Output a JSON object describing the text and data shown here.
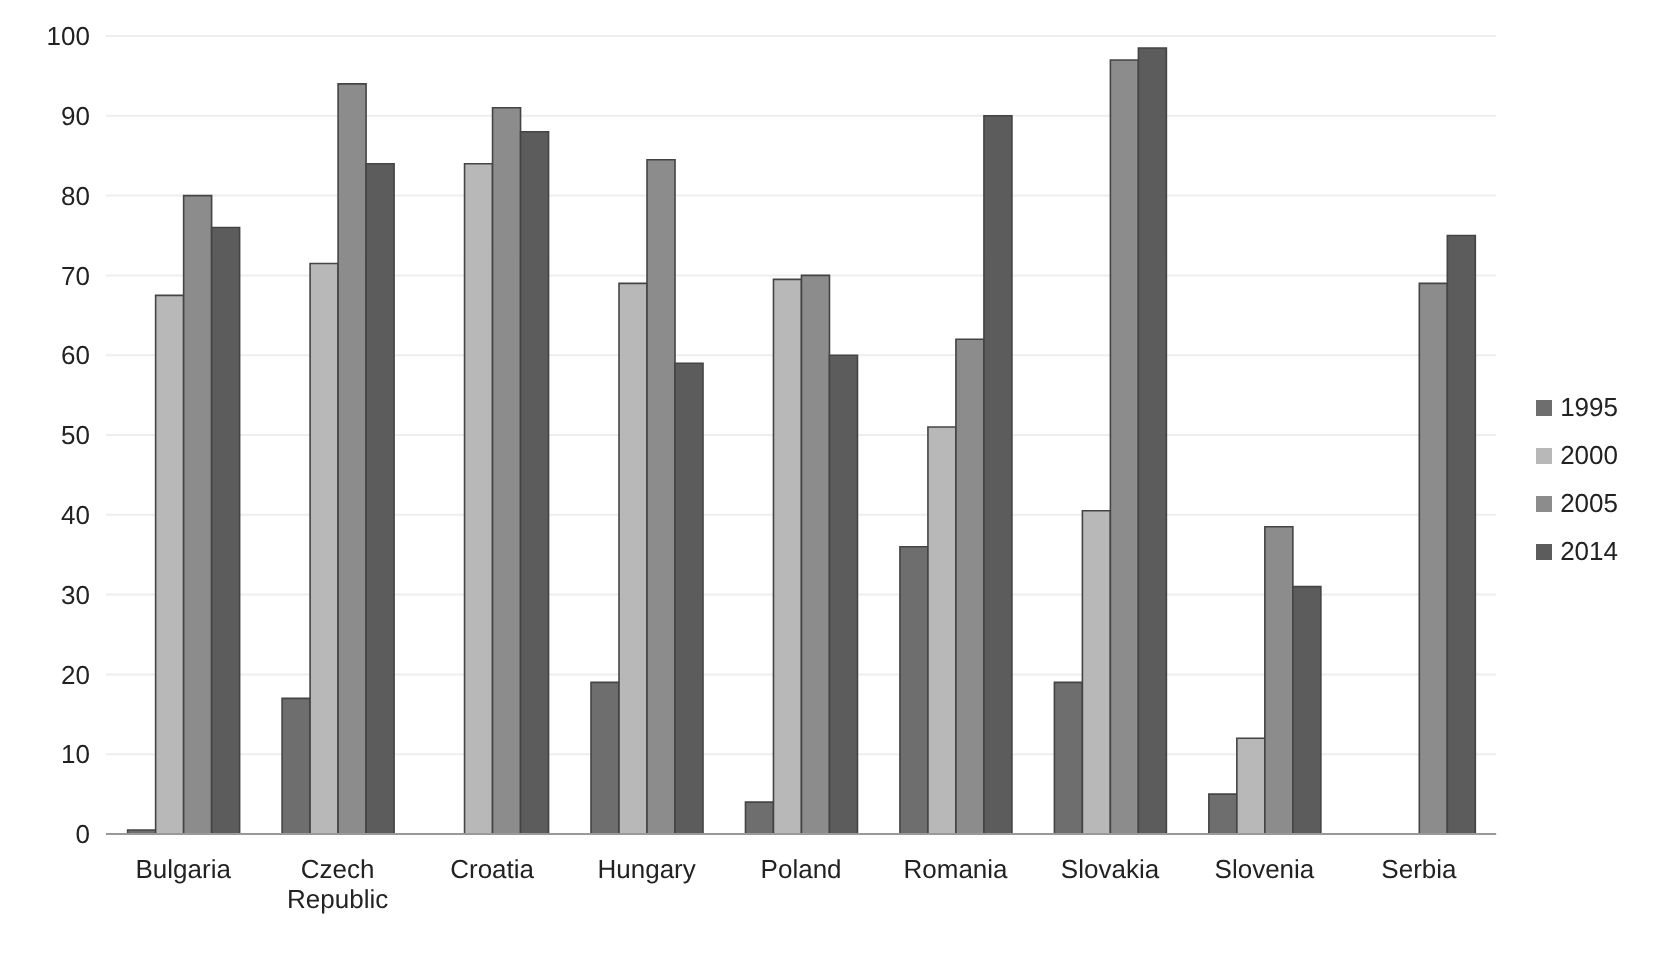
{
  "chart_data": {
    "type": "bar",
    "categories": [
      "Bulgaria",
      "Czech Republic",
      "Croatia",
      "Hungary",
      "Poland",
      "Romania",
      "Slovakia",
      "Slovenia",
      "Serbia"
    ],
    "series": [
      {
        "name": "1995",
        "color": "#6e6e6e",
        "values": [
          0.5,
          17,
          null,
          19,
          4,
          36,
          19,
          5,
          null
        ]
      },
      {
        "name": "2000",
        "color": "#b8b8b8",
        "values": [
          67.5,
          71.5,
          84,
          69,
          69.5,
          51,
          40.5,
          12,
          null
        ]
      },
      {
        "name": "2005",
        "color": "#8c8c8c",
        "values": [
          80,
          94,
          91,
          84.5,
          70,
          62,
          97,
          38.5,
          69
        ]
      },
      {
        "name": "2014",
        "color": "#5c5c5c",
        "values": [
          76,
          84,
          88,
          59,
          60,
          90,
          98.5,
          31,
          75
        ]
      }
    ],
    "ylim": [
      0,
      100
    ],
    "yticks": [
      0,
      10,
      20,
      30,
      40,
      50,
      60,
      70,
      80,
      90,
      100
    ],
    "grid": "y",
    "legend": "right"
  }
}
